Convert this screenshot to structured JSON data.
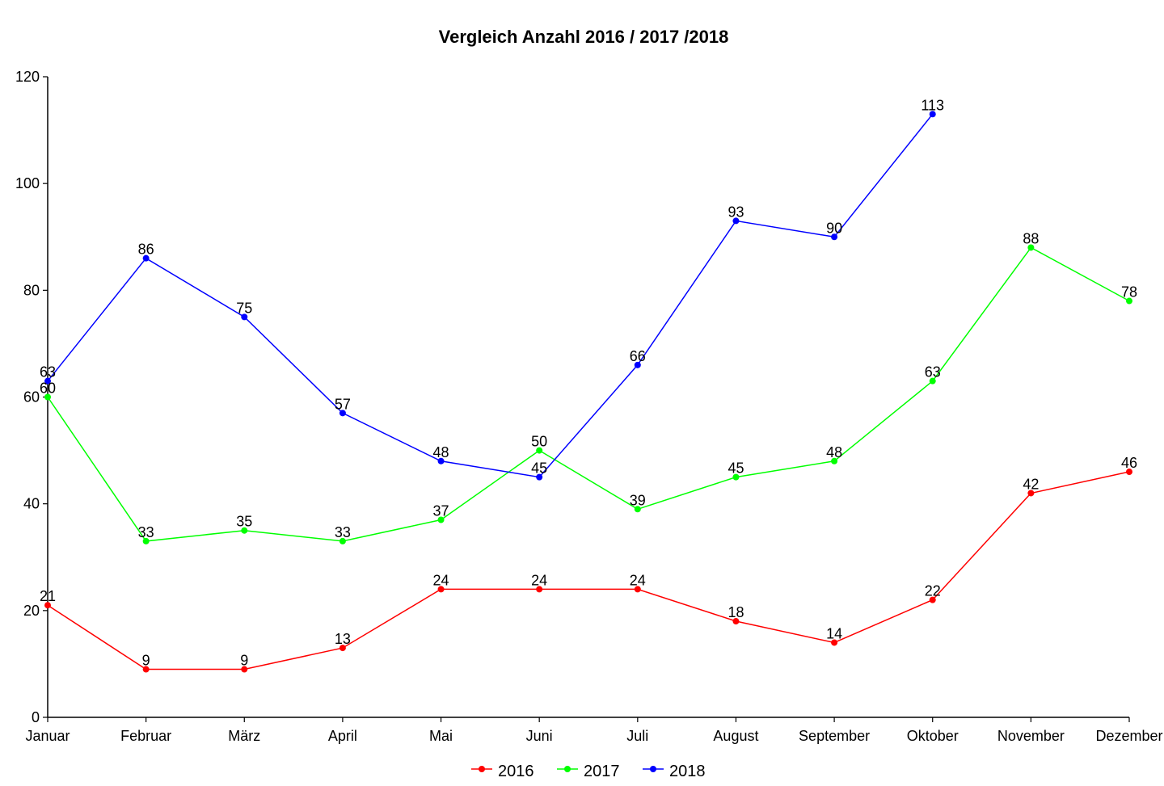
{
  "chart_data": {
    "type": "line",
    "title": "Vergleich Anzahl 2016 / 2017 /2018",
    "xlabel": "",
    "ylabel": "",
    "categories": [
      "Januar",
      "Februar",
      "März",
      "April",
      "Mai",
      "Juni",
      "Juli",
      "August",
      "September",
      "Oktober",
      "November",
      "Dezember"
    ],
    "ylim": [
      0,
      120
    ],
    "yticks": [
      0,
      20,
      40,
      60,
      80,
      100,
      120
    ],
    "grid": false,
    "legend_position": "bottom",
    "series": [
      {
        "name": "2016",
        "color": "#ff0000",
        "values": [
          21,
          9,
          9,
          13,
          24,
          24,
          24,
          18,
          14,
          22,
          42,
          46
        ]
      },
      {
        "name": "2017",
        "color": "#00ff00",
        "values": [
          60,
          33,
          35,
          33,
          37,
          50,
          39,
          45,
          48,
          63,
          88,
          78
        ]
      },
      {
        "name": "2018",
        "color": "#0000ff",
        "values": [
          63,
          86,
          75,
          57,
          48,
          45,
          66,
          93,
          90,
          113,
          null,
          null
        ]
      }
    ]
  }
}
